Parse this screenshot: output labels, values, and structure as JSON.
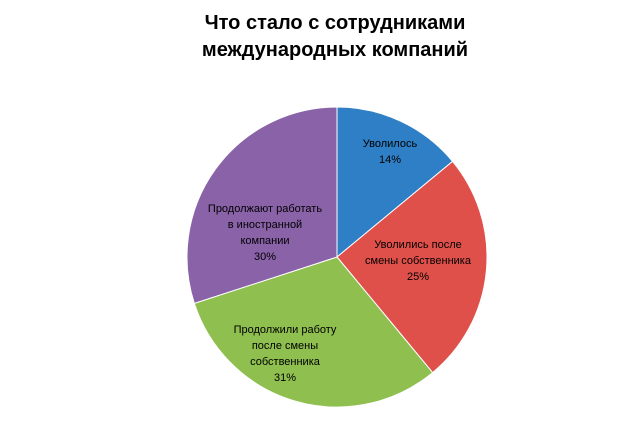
{
  "chart_data": {
    "type": "pie",
    "title_lines": [
      "Что стало с сотрудниками",
      "международных компаний"
    ],
    "slices": [
      {
        "label_lines": [
          "Уволилось"
        ],
        "value": 14,
        "value_label": "14%",
        "color": "#2e7fc6"
      },
      {
        "label_lines": [
          "Уволились после",
          "смены собственника"
        ],
        "value": 25,
        "value_label": "25%",
        "color": "#e0504a"
      },
      {
        "label_lines": [
          "Продолжили работу",
          "после смены",
          "собственника"
        ],
        "value": 31,
        "value_label": "31%",
        "color": "#8fbf4f"
      },
      {
        "label_lines": [
          "Продолжают работать",
          "в иностранной",
          "компании"
        ],
        "value": 30,
        "value_label": "30%",
        "color": "#8a62a8"
      }
    ],
    "start_angle": "12 o'clock",
    "direction": "clockwise",
    "legend": "none"
  }
}
